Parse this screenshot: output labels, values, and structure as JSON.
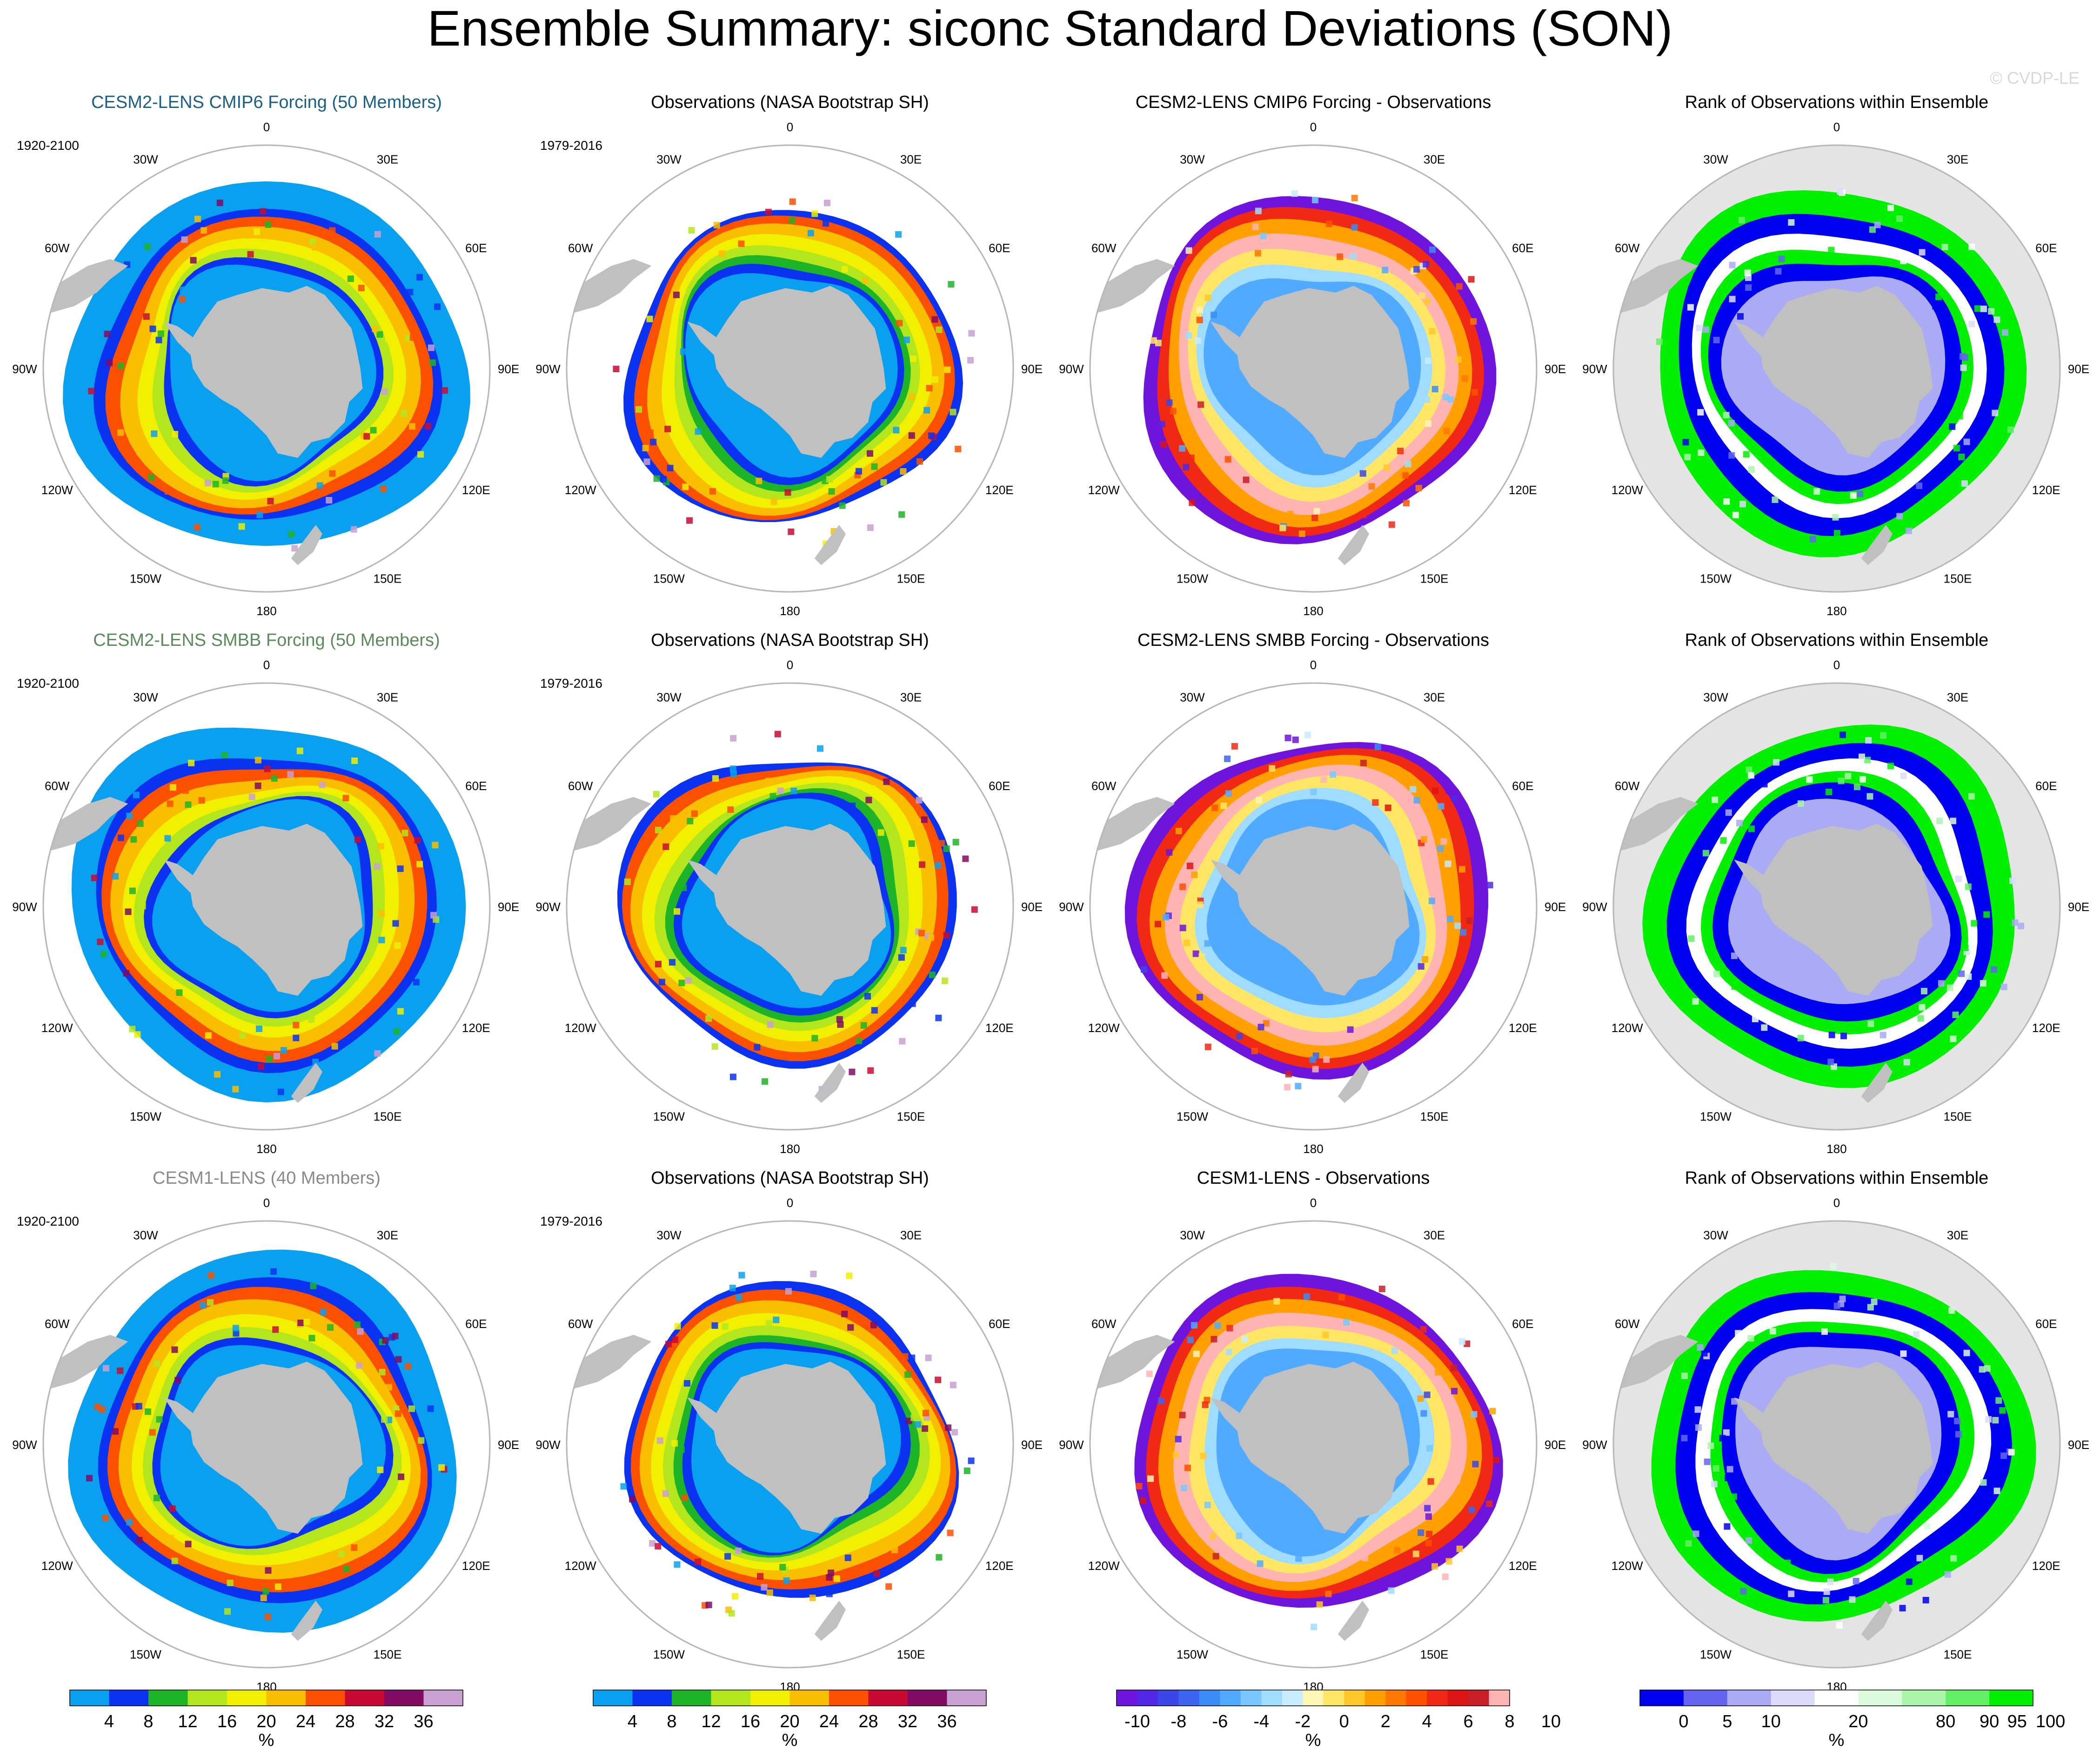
{
  "page": {
    "title": "Ensemble Summary: siconc Standard Deviations (SON)",
    "watermark": "© CVDP-LE"
  },
  "chart_data": {
    "type": "heatmap",
    "projection": "south-polar-stereographic",
    "longitude_labels": [
      "0",
      "30E",
      "60E",
      "90E",
      "120E",
      "150E",
      "180",
      "150W",
      "120W",
      "90W",
      "60W",
      "30W"
    ],
    "rows": [
      {
        "panels": [
          {
            "kind": "model",
            "title": "CESM2-LENS CMIP6 Forcing (50 Members)",
            "title_color": "#1a5f88",
            "period": "1920-2100"
          },
          {
            "kind": "obs",
            "title": "Observations (NASA Bootstrap SH)",
            "title_color": "#000000",
            "period": "1979-2016"
          },
          {
            "kind": "diff",
            "title": "CESM2-LENS CMIP6 Forcing - Observations",
            "title_color": "#000000"
          },
          {
            "kind": "rank",
            "title": "Rank of Observations within Ensemble",
            "title_color": "#000000"
          }
        ]
      },
      {
        "panels": [
          {
            "kind": "model",
            "title": "CESM2-LENS SMBB Forcing (50 Members)",
            "title_color": "#5a8a5a",
            "period": "1920-2100"
          },
          {
            "kind": "obs",
            "title": "Observations (NASA Bootstrap SH)",
            "title_color": "#000000",
            "period": "1979-2016"
          },
          {
            "kind": "diff",
            "title": "CESM2-LENS SMBB Forcing - Observations",
            "title_color": "#000000"
          },
          {
            "kind": "rank",
            "title": "Rank of Observations within Ensemble",
            "title_color": "#000000"
          }
        ]
      },
      {
        "panels": [
          {
            "kind": "model",
            "title": "CESM1-LENS (40 Members)",
            "title_color": "#8a8a8a",
            "period": "1920-2100"
          },
          {
            "kind": "obs",
            "title": "Observations (NASA Bootstrap SH)",
            "title_color": "#000000",
            "period": "1979-2016"
          },
          {
            "kind": "diff",
            "title": "CESM1-LENS - Observations",
            "title_color": "#000000"
          },
          {
            "kind": "rank",
            "title": "Rank of Observations within Ensemble",
            "title_color": "#000000"
          }
        ]
      }
    ],
    "colorbars": [
      {
        "name": "std-dev",
        "unit": "%",
        "tick_labels": [
          "4",
          "8",
          "12",
          "16",
          "20",
          "24",
          "28",
          "32",
          "36"
        ],
        "colors": [
          "#0aa0f0",
          "#0a32f0",
          "#1eb428",
          "#b4e61e",
          "#f0f000",
          "#fabe00",
          "#fa5000",
          "#c80a32",
          "#800a64",
          "#c8a0d2"
        ]
      },
      {
        "name": "std-dev",
        "unit": "%",
        "tick_labels": [
          "4",
          "8",
          "12",
          "16",
          "20",
          "24",
          "28",
          "32",
          "36"
        ],
        "colors": [
          "#0aa0f0",
          "#0a32f0",
          "#1eb428",
          "#b4e61e",
          "#f0f000",
          "#fabe00",
          "#fa5000",
          "#c80a32",
          "#800a64",
          "#c8a0d2"
        ]
      },
      {
        "name": "difference",
        "unit": "%",
        "tick_labels": [
          "-10",
          "-8",
          "-6",
          "-4",
          "-2",
          "0",
          "2",
          "4",
          "6",
          "8",
          "10"
        ],
        "colors": [
          "#6e14dc",
          "#5028e6",
          "#3c46e6",
          "#3c64f0",
          "#3c8cf5",
          "#50aaff",
          "#78c8ff",
          "#a0dcff",
          "#c8ebff",
          "#fff5b4",
          "#ffe664",
          "#ffc828",
          "#ffa000",
          "#ff7800",
          "#ff5000",
          "#f02814",
          "#dc1414",
          "#c81e28",
          "#ffb4b4"
        ]
      },
      {
        "name": "rank",
        "unit": "%",
        "tick_labels": [
          "0",
          "5",
          "10",
          "20",
          "80",
          "90",
          "95",
          "100"
        ],
        "colors": [
          "#0000f0",
          "#6464f0",
          "#aaaaf5",
          "#dcdcfa",
          "#ffffff",
          "#dcfadc",
          "#aaf5aa",
          "#64f064",
          "#00f000"
        ]
      }
    ]
  }
}
